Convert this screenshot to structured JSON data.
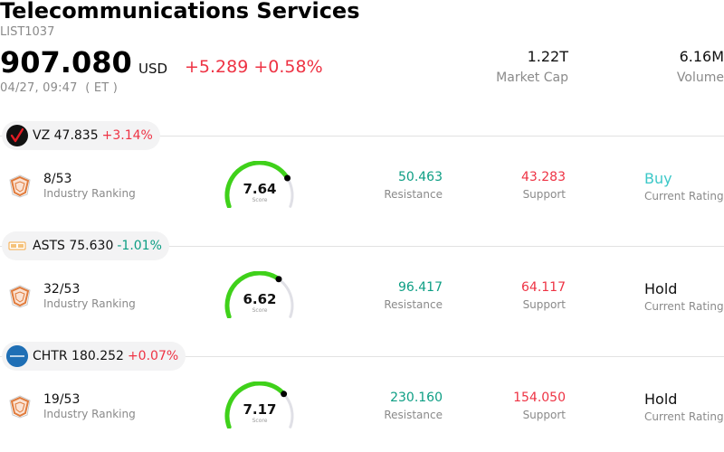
{
  "header": {
    "title": "Telecommunications Services",
    "code": "LIST1037",
    "price": "907.080",
    "currency": "USD",
    "change": "+5.289 +0.58%",
    "time": "04/27, 09:47  ( ET )",
    "market_cap_value": "1.22T",
    "market_cap_label": "Market Cap",
    "volume_value": "6.16M",
    "volume_label": "Volume"
  },
  "colors": {
    "up": "#ee3344",
    "down": "#0d9e84",
    "gauge": "#3fd11a",
    "buy": "#3cc8c8"
  },
  "stocks": [
    {
      "symbol": "VZ",
      "price": "47.835",
      "change": "+3.14%",
      "direction": "up",
      "logo_icon": "verizon-check-icon",
      "rank": "8/53",
      "rank_label": "Industry Ranking",
      "score": "7.64",
      "score_fraction": 0.764,
      "score_label": "Score",
      "resistance": "50.463",
      "resistance_label": "Resistance",
      "support": "43.283",
      "support_label": "Support",
      "rating": "Buy",
      "rating_label": "Current Rating"
    },
    {
      "symbol": "ASTS",
      "price": "75.630",
      "change": "-1.01%",
      "direction": "down",
      "logo_icon": "asts-logo-icon",
      "rank": "32/53",
      "rank_label": "Industry Ranking",
      "score": "6.62",
      "score_fraction": 0.662,
      "score_label": "Score",
      "resistance": "96.417",
      "resistance_label": "Resistance",
      "support": "64.117",
      "support_label": "Support",
      "rating": "Hold",
      "rating_label": "Current Rating"
    },
    {
      "symbol": "CHTR",
      "price": "180.252",
      "change": "+0.07%",
      "direction": "up",
      "logo_icon": "charter-logo-icon",
      "rank": "19/53",
      "rank_label": "Industry Ranking",
      "score": "7.17",
      "score_fraction": 0.717,
      "score_label": "Score",
      "resistance": "230.160",
      "resistance_label": "Resistance",
      "support": "154.050",
      "support_label": "Support",
      "rating": "Hold",
      "rating_label": "Current Rating"
    }
  ]
}
